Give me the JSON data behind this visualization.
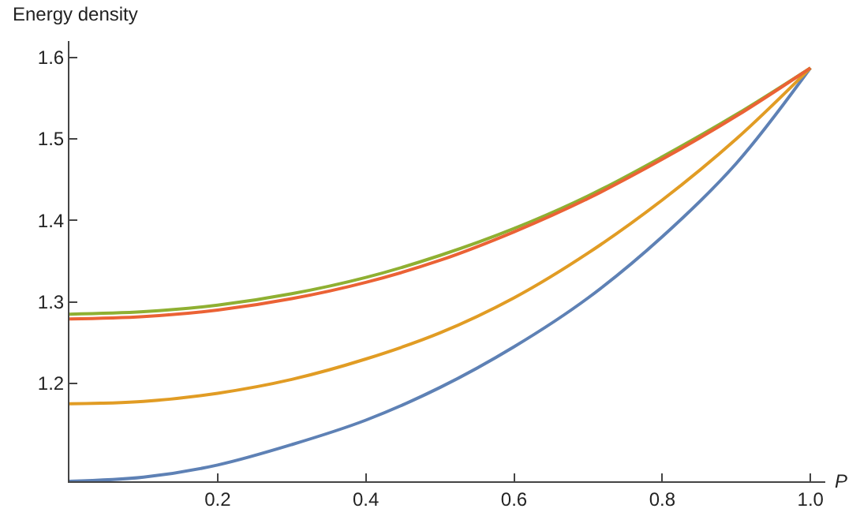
{
  "chart_data": {
    "type": "line",
    "ylabel": "Energy density",
    "xlabel": "P",
    "xlim": [
      0,
      1.02
    ],
    "ylim": [
      1.08,
      1.62
    ],
    "xticks": [
      0.2,
      0.4,
      0.6,
      0.8,
      {
        "value": 1,
        "label": "1.0"
      }
    ],
    "yticks": [
      1.2,
      1.3,
      1.4,
      1.5,
      1.6
    ],
    "x": [
      0,
      0.1,
      0.2,
      0.3,
      0.4,
      0.5,
      0.6,
      0.7,
      0.8,
      0.9,
      1.0
    ],
    "grid": false,
    "marker": "none",
    "line_style": "solid",
    "series": [
      {
        "color": "#5e81b5",
        "values": [
          1.08,
          1.085,
          1.1,
          1.125,
          1.155,
          1.195,
          1.245,
          1.305,
          1.38,
          1.47,
          1.587
        ]
      },
      {
        "color": "#e19c24",
        "values": [
          1.175,
          1.178,
          1.188,
          1.205,
          1.23,
          1.262,
          1.305,
          1.36,
          1.425,
          1.5,
          1.587
        ]
      },
      {
        "color": "#8fb032",
        "values": [
          1.285,
          1.288,
          1.296,
          1.31,
          1.33,
          1.357,
          1.39,
          1.43,
          1.478,
          1.53,
          1.587
        ]
      },
      {
        "color": "#eb6235",
        "values": [
          1.279,
          1.282,
          1.29,
          1.304,
          1.324,
          1.351,
          1.386,
          1.427,
          1.475,
          1.528,
          1.587
        ]
      }
    ]
  }
}
